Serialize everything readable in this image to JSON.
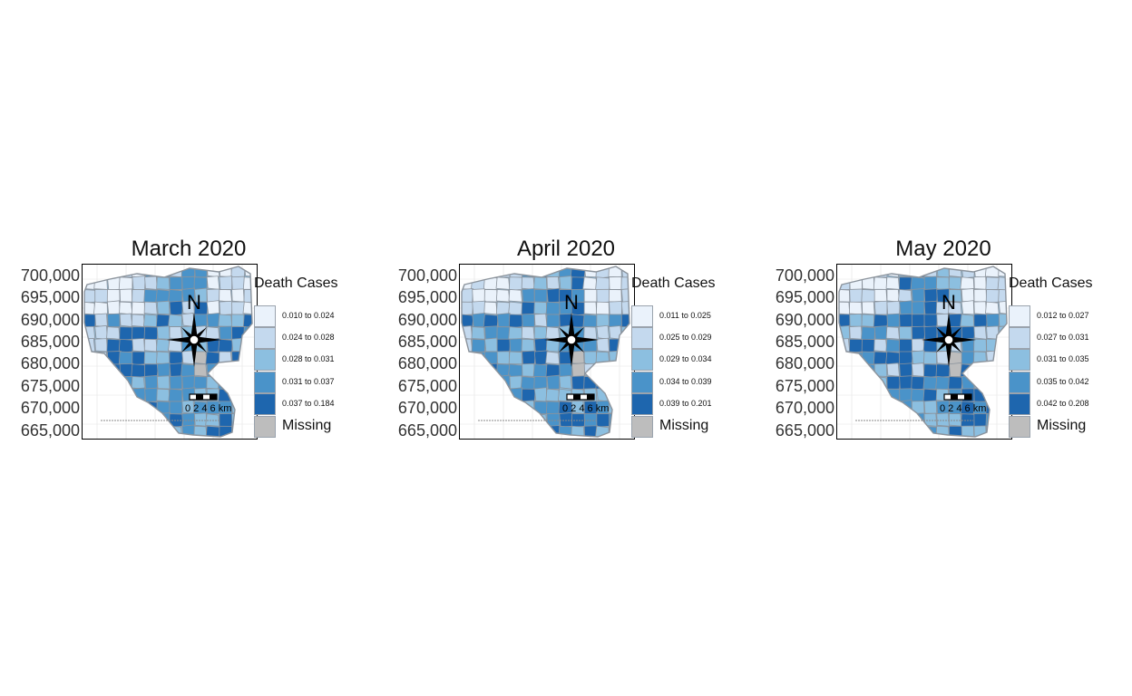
{
  "legend_title": "Death Cases",
  "missing_label": "Missing",
  "y_ticks": [
    "700,000",
    "695,000",
    "690,000",
    "685,000",
    "680,000",
    "675,000",
    "670,000",
    "665,000"
  ],
  "north_label": "N",
  "scale_bar_label": "0 2 4 6 km",
  "classes_colors": [
    "#eaf2fb",
    "#c4d9ee",
    "#8cbfe0",
    "#4a93c9",
    "#1e66ae"
  ],
  "missing_color": "#bdbdbd",
  "maps": [
    {
      "title": "March 2020",
      "legend": [
        "0.010 to 0.024",
        "0.024 to 0.028",
        "0.028 to 0.031",
        "0.031 to 0.037",
        "0.037 to 0.184"
      ]
    },
    {
      "title": "April 2020",
      "legend": [
        "0.011 to 0.025",
        "0.025 to 0.029",
        "0.029 to 0.034",
        "0.034 to 0.039",
        "0.039 to 0.201"
      ]
    },
    {
      "title": "May 2020",
      "legend": [
        "0.012 to 0.027",
        "0.027 to 0.031",
        "0.031 to 0.035",
        "0.035 to 0.042",
        "0.042 to 0.208"
      ]
    }
  ]
}
